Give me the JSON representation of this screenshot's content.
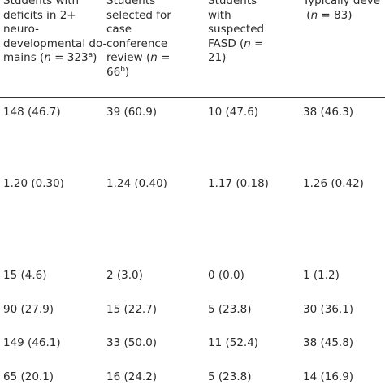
{
  "header": {
    "col0": {
      "line1": "Students with",
      "line2": "deficits in 2+",
      "line3": "neuro-",
      "line4": "developmental do-",
      "line5_pre": "mains (",
      "line5_n": "n",
      "line5_post": " = 323",
      "line5_sup": "a",
      "line5_end": ")"
    },
    "col1": {
      "line1": "Students",
      "line2": "selected for",
      "line3": "case",
      "line4": "conference",
      "line5_pre": "review (",
      "line5_n": "n",
      "line5_post": " =",
      "line6_pre": "66",
      "line6_sup": "b",
      "line6_end": ")"
    },
    "col2": {
      "line1": "Students",
      "line2": "with",
      "line3": "suspected",
      "line4_pre": "FASD (",
      "line4_n": "n",
      "line4_post": " =",
      "line5": "21)"
    },
    "col3": {
      "line1": "Typically deve",
      "line2_pre": "(",
      "line2_n": "n",
      "line2_post": " = 83)"
    }
  },
  "rows": [
    [
      "148 (46.7)",
      "39 (60.9)",
      "10 (47.6)",
      "38 (46.3)"
    ],
    [
      "1.20 (0.30)",
      "1.24 (0.40)",
      "1.17 (0.18)",
      "1.26 (0.42)"
    ],
    [
      "15 (4.6)",
      "2 (3.0)",
      "0 (0.0)",
      "1 (1.2)"
    ],
    [
      "90 (27.9)",
      "15 (22.7)",
      "5 (23.8)",
      "30 (36.1)"
    ],
    [
      "149 (46.1)",
      "33 (50.0)",
      "11 (52.4)",
      "38 (45.8)"
    ],
    [
      "65 (20.1)",
      "16 (24.2)",
      "5 (23.8)",
      "14 (16.9)"
    ]
  ]
}
